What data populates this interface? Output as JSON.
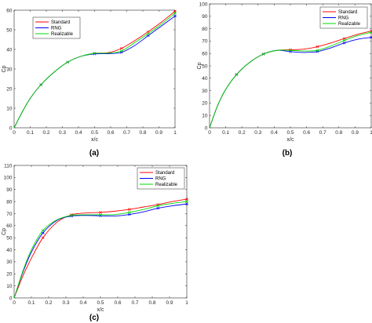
{
  "chart_data": [
    {
      "type": "line",
      "panel_label": "(a)",
      "xlabel": "x/c",
      "ylabel": "Cp",
      "xlim": [
        0,
        1
      ],
      "ylim": [
        0,
        60
      ],
      "xticks": [
        "0",
        "0.1",
        "0.2",
        "0.3",
        "0.4",
        "0.5",
        "0.6",
        "0.7",
        "0.8",
        "0.9",
        "1"
      ],
      "yticks": [
        "0",
        "10",
        "20",
        "30",
        "40",
        "50",
        "60"
      ],
      "legend_position": "top-left",
      "grid": false,
      "series": [
        {
          "name": "Standard",
          "color": "#ff0000",
          "x": [
            0,
            0.05,
            0.1,
            0.167,
            0.25,
            0.333,
            0.417,
            0.5,
            0.583,
            0.667,
            0.75,
            0.833,
            0.917,
            1.0
          ],
          "y": [
            0,
            8,
            15,
            22,
            28.5,
            33.5,
            36.5,
            38,
            38.3,
            40.5,
            44.5,
            49,
            54,
            59.5
          ]
        },
        {
          "name": "RNG",
          "color": "#0000ff",
          "x": [
            0,
            0.05,
            0.1,
            0.167,
            0.25,
            0.333,
            0.417,
            0.5,
            0.583,
            0.667,
            0.75,
            0.833,
            0.917,
            1.0
          ],
          "y": [
            0,
            8,
            15,
            22,
            28.5,
            33.5,
            36.5,
            37.7,
            37.8,
            38.5,
            42,
            47,
            52,
            57
          ]
        },
        {
          "name": "Realizable",
          "color": "#00dd00",
          "x": [
            0,
            0.05,
            0.1,
            0.167,
            0.25,
            0.333,
            0.417,
            0.5,
            0.583,
            0.667,
            0.75,
            0.833,
            0.917,
            1.0
          ],
          "y": [
            0,
            8,
            15,
            22,
            28.5,
            33.5,
            36.5,
            38,
            38.1,
            39.2,
            43.5,
            48,
            53,
            58.5
          ]
        }
      ],
      "marker_x": [
        0.167,
        0.333,
        0.5,
        0.667,
        0.833,
        1.0
      ]
    },
    {
      "type": "line",
      "panel_label": "(b)",
      "xlabel": "x/c",
      "ylabel": "Cp",
      "xlim": [
        0,
        1
      ],
      "ylim": [
        0,
        100
      ],
      "xticks": [
        "0",
        "0.1",
        "0.2",
        "0.3",
        "0.4",
        "0.5",
        "0.6",
        "0.7",
        "0.8",
        "0.9",
        "1"
      ],
      "yticks": [
        "0",
        "10",
        "20",
        "30",
        "40",
        "50",
        "60",
        "70",
        "80",
        "90",
        "100"
      ],
      "legend_position": "top-right",
      "grid": false,
      "series": [
        {
          "name": "Standard",
          "color": "#ff0000",
          "x": [
            0,
            0.05,
            0.1,
            0.167,
            0.25,
            0.333,
            0.417,
            0.5,
            0.583,
            0.667,
            0.75,
            0.833,
            0.917,
            1.0
          ],
          "y": [
            0,
            18,
            31,
            43,
            53,
            59.5,
            62.5,
            63,
            63.5,
            65.5,
            68.5,
            72,
            75.5,
            78
          ]
        },
        {
          "name": "RNG",
          "color": "#0000ff",
          "x": [
            0,
            0.05,
            0.1,
            0.167,
            0.25,
            0.333,
            0.417,
            0.5,
            0.583,
            0.667,
            0.75,
            0.833,
            0.917,
            1.0
          ],
          "y": [
            0,
            18,
            31,
            43,
            53,
            59.5,
            62.5,
            61.5,
            60.8,
            61.5,
            64.5,
            68.5,
            71.5,
            73
          ]
        },
        {
          "name": "Realizable",
          "color": "#00dd00",
          "x": [
            0,
            0.05,
            0.1,
            0.167,
            0.25,
            0.333,
            0.417,
            0.5,
            0.583,
            0.667,
            0.75,
            0.833,
            0.917,
            1.0
          ],
          "y": [
            0,
            18,
            31,
            43,
            53,
            59.5,
            62.5,
            62.5,
            62,
            62.5,
            66,
            70.5,
            74.5,
            77
          ]
        }
      ],
      "marker_x": [
        0.167,
        0.333,
        0.5,
        0.667,
        0.833,
        1.0
      ]
    },
    {
      "type": "line",
      "panel_label": "(c)",
      "xlabel": "x/c",
      "ylabel": "Cp",
      "xlim": [
        0,
        1
      ],
      "ylim": [
        0,
        110
      ],
      "xticks": [
        "0",
        "0.1",
        "0.2",
        "0.3",
        "0.4",
        "0.5",
        "0.6",
        "0.7",
        "0.8",
        "0.9",
        "1"
      ],
      "yticks": [
        "0",
        "10",
        "20",
        "30",
        "40",
        "50",
        "60",
        "70",
        "80",
        "90",
        "100",
        "110"
      ],
      "legend_position": "top-right",
      "grid": false,
      "series": [
        {
          "name": "Standard",
          "color": "#ff0000",
          "x": [
            0,
            0.05,
            0.1,
            0.167,
            0.25,
            0.333,
            0.417,
            0.5,
            0.583,
            0.667,
            0.75,
            0.833,
            0.917,
            1.0
          ],
          "y": [
            0,
            18,
            33,
            50,
            63,
            69,
            70.5,
            71,
            72,
            73.5,
            75.5,
            77.5,
            80,
            82
          ]
        },
        {
          "name": "RNG",
          "color": "#0000ff",
          "x": [
            0,
            0.05,
            0.1,
            0.167,
            0.25,
            0.333,
            0.417,
            0.5,
            0.583,
            0.667,
            0.75,
            0.833,
            0.917,
            1.0
          ],
          "y": [
            0,
            21,
            38,
            54,
            64.5,
            68,
            68.5,
            68.2,
            68,
            69.3,
            71.5,
            74.5,
            76.5,
            78
          ]
        },
        {
          "name": "Realizable",
          "color": "#00dd00",
          "x": [
            0,
            0.05,
            0.1,
            0.167,
            0.25,
            0.333,
            0.417,
            0.5,
            0.583,
            0.667,
            0.75,
            0.833,
            0.917,
            1.0
          ],
          "y": [
            0,
            22,
            40,
            56,
            65,
            68.5,
            69,
            69,
            69.2,
            71,
            73.5,
            76.5,
            78.5,
            80
          ]
        }
      ],
      "marker_x": [
        0.167,
        0.333,
        0.5,
        0.667,
        0.833,
        1.0
      ]
    }
  ]
}
